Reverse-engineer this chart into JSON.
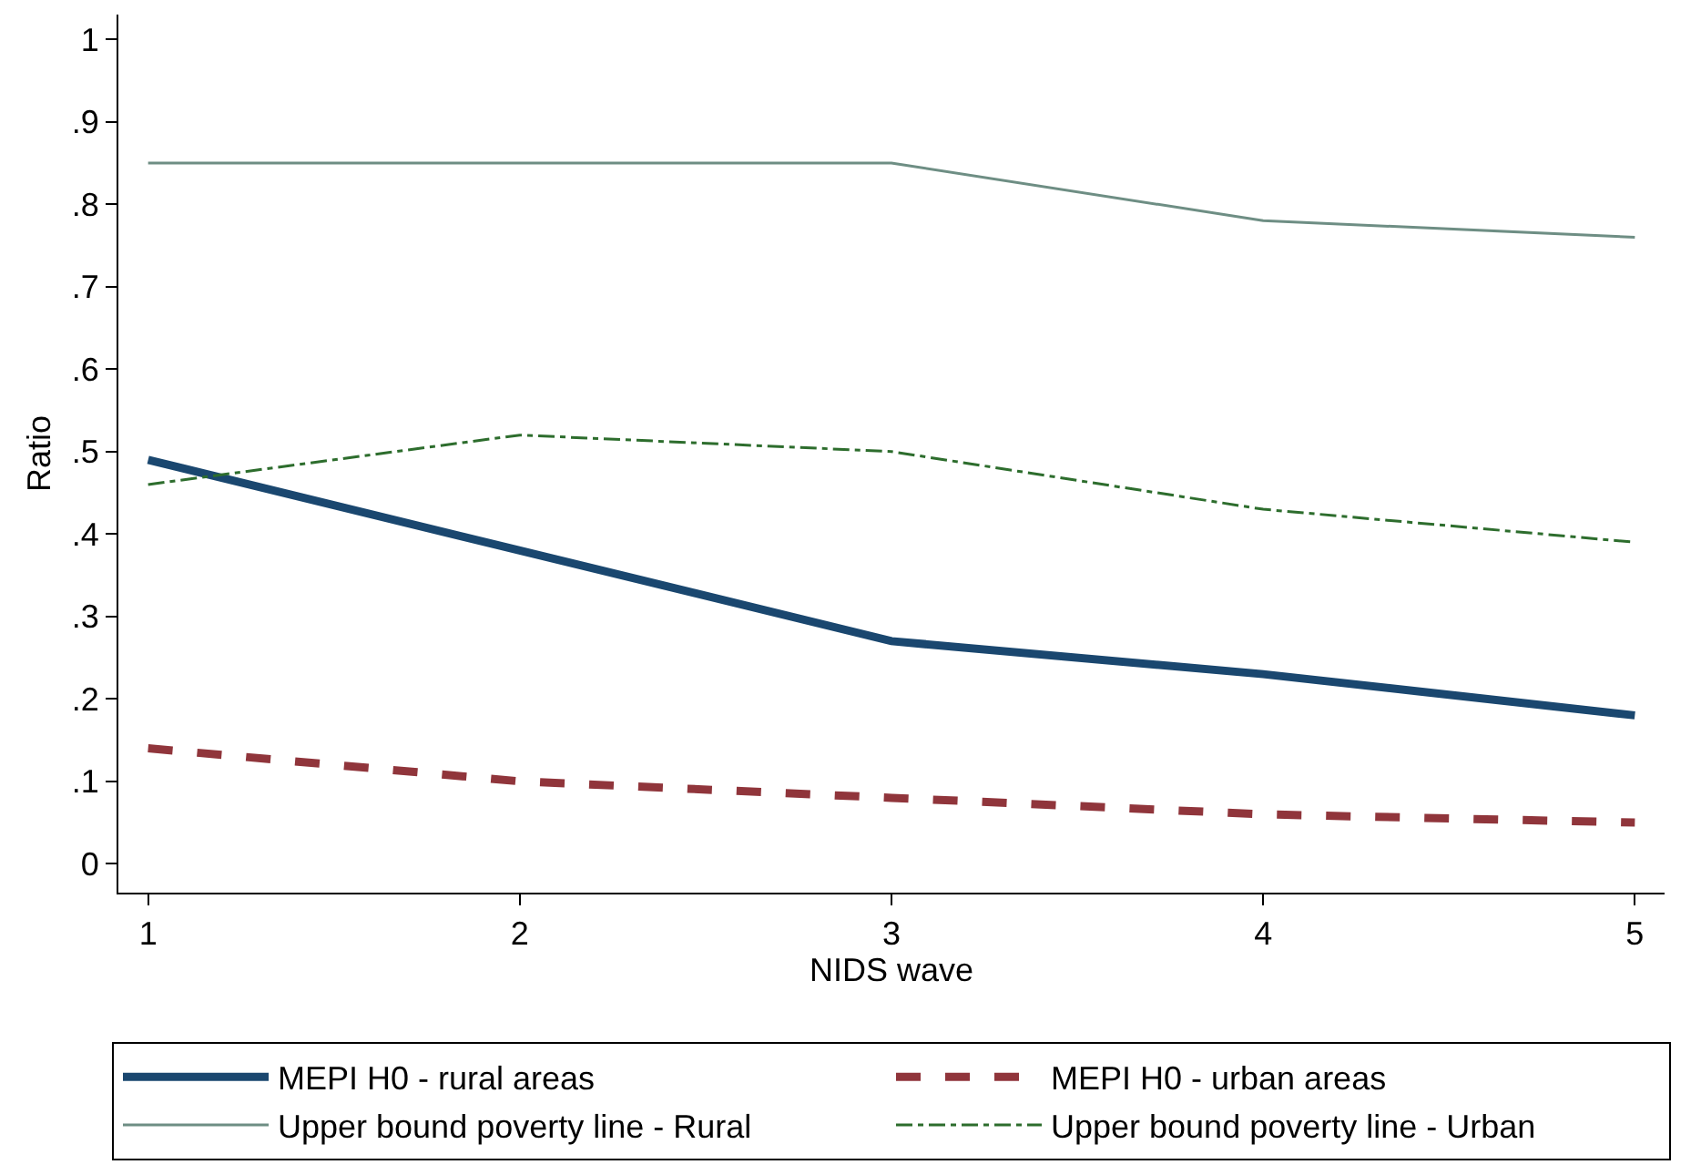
{
  "chart_data": {
    "type": "line",
    "xlabel": "NIDS wave",
    "ylabel": "Ratio",
    "x": [
      1,
      2,
      3,
      4,
      5
    ],
    "series": [
      {
        "name": "MEPI H0 - rural areas",
        "color": "#1a476f",
        "line_style": "solid",
        "values": [
          0.49,
          0.38,
          0.27,
          0.23,
          0.18
        ]
      },
      {
        "name": "MEPI H0 - urban areas",
        "color": "#90353b",
        "line_style": "dashed",
        "values": [
          0.14,
          0.1,
          0.08,
          0.06,
          0.05
        ]
      },
      {
        "name": "Upper bound poverty line - Rural",
        "color": "#6e8e84",
        "line_style": "solid",
        "values": [
          0.85,
          0.85,
          0.85,
          0.78,
          0.76
        ]
      },
      {
        "name": "Upper bound poverty line - Urban",
        "color": "#2d6d2d",
        "line_style": "dashdot",
        "values": [
          0.46,
          0.52,
          0.5,
          0.43,
          0.39
        ]
      }
    ],
    "xlim": [
      0.92,
      5.08
    ],
    "ylim": [
      -0.035,
      1.03
    ],
    "xticks": [
      1,
      2,
      3,
      4,
      5
    ],
    "yticks": [
      0,
      {
        "value": 0.1,
        "label": ".1"
      },
      {
        "value": 0.2,
        "label": ".2"
      },
      {
        "value": 0.3,
        "label": ".3"
      },
      {
        "value": 0.4,
        "label": ".4"
      },
      {
        "value": 0.5,
        "label": ".5"
      },
      {
        "value": 0.6,
        "label": ".6"
      },
      {
        "value": 0.7,
        "label": ".7"
      },
      {
        "value": 0.8,
        "label": ".8"
      },
      {
        "value": 0.9,
        "label": ".9"
      },
      1
    ],
    "legend": "bottom",
    "marker": "none"
  }
}
